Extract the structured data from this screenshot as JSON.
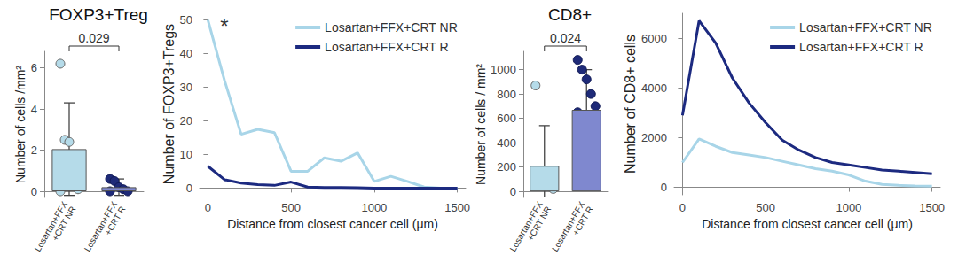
{
  "chart_data": [
    {
      "type": "bar",
      "title": "FOXP3+Treg",
      "ylabel": "Number of cells /mm²",
      "categories": [
        "Losartan+FFX\n+CRT NR",
        "Losartan+FFX\n+CRT R"
      ],
      "values": [
        2.05,
        0.2
      ],
      "error": [
        2.25,
        0.4
      ],
      "points": [
        [
          6.2,
          2.5,
          2.4,
          0.6,
          0.1,
          0
        ],
        [
          0.6,
          0.5,
          0.2,
          0.1,
          0,
          0
        ]
      ],
      "colors": [
        "#b5dbe9",
        "#7f88cf"
      ],
      "annotations": [
        "0.029"
      ],
      "ylim": [
        -0.3,
        6.8
      ],
      "yticks": [
        0,
        2,
        4,
        6
      ],
      "grid": false
    },
    {
      "type": "line",
      "xlabel": "Distance from closest cancer cell (μm)",
      "ylabel": "Number of FOXP3+Tregs",
      "x": [
        0,
        100,
        200,
        300,
        400,
        500,
        600,
        700,
        800,
        900,
        1000,
        1100,
        1200,
        1300,
        1400,
        1500
      ],
      "series": [
        {
          "name": "Losartan+FFX+CRT NR",
          "color": "#a8d5e8",
          "values": [
            50,
            32,
            16,
            17.5,
            16.5,
            5,
            5,
            9,
            8,
            10.5,
            2,
            3.5,
            2,
            0.3,
            0,
            0
          ]
        },
        {
          "name": "Losartan+FFX+CRT R",
          "color": "#1c2a80",
          "values": [
            6.5,
            2.5,
            1.5,
            1,
            0.8,
            1.8,
            0.3,
            0.2,
            0.2,
            0.1,
            0,
            0,
            0,
            0,
            0,
            0
          ]
        }
      ],
      "annotations": [
        "*"
      ],
      "xlim": [
        -50,
        1550
      ],
      "xticks": [
        0,
        500,
        1000,
        1500
      ],
      "ylim": [
        -2,
        52
      ],
      "yticks": [
        0,
        10,
        20,
        30,
        40,
        50
      ],
      "legend": "upper right",
      "grid": false
    },
    {
      "type": "bar",
      "title": "CD8+",
      "ylabel": "Number of cells / mm²",
      "categories": [
        "Losartan+FFX\n+CRT NR",
        "Losartan+FFX\n+CRT R"
      ],
      "values": [
        210,
        670
      ],
      "error": [
        330,
        330
      ],
      "points": [
        [
          870,
          150,
          80,
          40,
          20
        ],
        [
          1080,
          1000,
          920,
          800,
          700,
          650,
          420,
          70
        ]
      ],
      "colors": [
        "#b5dbe9",
        "#7f88cf"
      ],
      "annotations": [
        "0.024"
      ],
      "ylim": [
        -50,
        1150
      ],
      "yticks": [
        0,
        200,
        400,
        600,
        800,
        1000
      ],
      "grid": false
    },
    {
      "type": "line",
      "xlabel": "Distance from closest cancer cell (μm)",
      "ylabel": "Number of CD8+ cells",
      "x": [
        0,
        100,
        200,
        300,
        400,
        500,
        600,
        700,
        800,
        900,
        1000,
        1100,
        1200,
        1300,
        1400,
        1500
      ],
      "series": [
        {
          "name": "Losartan+FFX+CRT NR",
          "color": "#a8d5e8",
          "values": [
            1000,
            1950,
            1650,
            1400,
            1300,
            1200,
            1050,
            900,
            750,
            650,
            500,
            250,
            120,
            80,
            60,
            50
          ]
        },
        {
          "name": "Losartan+FFX+CRT R",
          "color": "#1c2a80",
          "values": [
            2900,
            6700,
            5800,
            4400,
            3400,
            2600,
            1900,
            1500,
            1200,
            1000,
            900,
            800,
            700,
            650,
            600,
            550
          ]
        }
      ],
      "xlim": [
        -50,
        1550
      ],
      "xticks": [
        0,
        500,
        1000,
        1500
      ],
      "ylim": [
        -300,
        7000
      ],
      "yticks": [
        0,
        2000,
        4000,
        6000
      ],
      "legend": "upper right",
      "grid": false
    }
  ]
}
